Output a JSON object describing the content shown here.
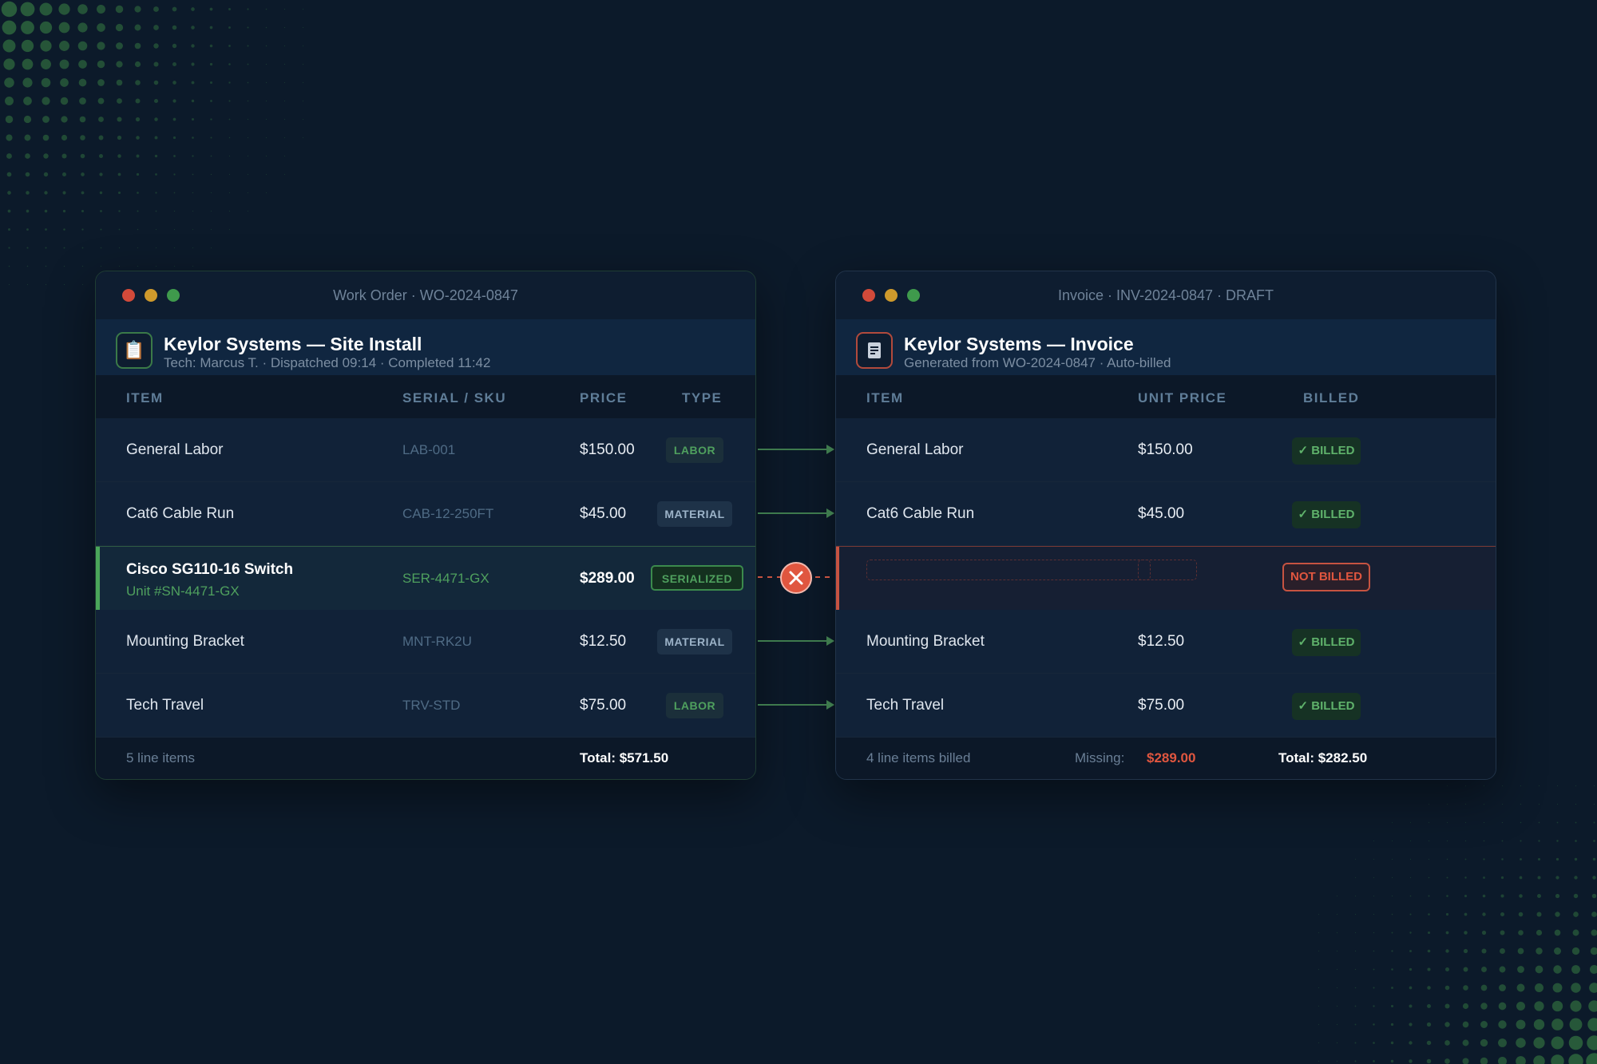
{
  "colors": {
    "background": "#0c1a2a",
    "accent_green": "#4fa05e",
    "error_red": "#e0563f"
  },
  "work_order": {
    "window_title": "Work Order · WO-2024-0847",
    "header_icon": "clipboard-icon",
    "title": "Keylor Systems — Site Install",
    "subtitle": "Tech: Marcus T. · Dispatched 09:14 · Completed 11:42",
    "columns": {
      "item": "ITEM",
      "serial": "SERIAL / SKU",
      "price": "PRICE",
      "type": "TYPE"
    },
    "rows": [
      {
        "item": "General Labor",
        "sku": "LAB-001",
        "price": "$150.00",
        "type": "LABOR"
      },
      {
        "item": "Cat6 Cable Run",
        "sku": "CAB-12-250FT",
        "price": "$45.00",
        "type": "MATERIAL"
      },
      {
        "item": "Cisco SG110-16 Switch",
        "unit": "Unit #SN-4471-GX",
        "sku": "SER-4471-GX",
        "price": "$289.00",
        "type": "SERIALIZED"
      },
      {
        "item": "Mounting Bracket",
        "sku": "MNT-RK2U",
        "price": "$12.50",
        "type": "MATERIAL"
      },
      {
        "item": "Tech Travel",
        "sku": "TRV-STD",
        "price": "$75.00",
        "type": "LABOR"
      }
    ],
    "footer": {
      "count": "5 line items",
      "total": "Total: $571.50"
    }
  },
  "invoice": {
    "window_title": "Invoice · INV-2024-0847 · DRAFT",
    "header_icon": "receipt-icon",
    "title": "Keylor Systems — Invoice",
    "subtitle": "Generated from WO-2024-0847 · Auto-billed",
    "columns": {
      "item": "ITEM",
      "unit_price": "UNIT PRICE",
      "billed": "BILLED"
    },
    "rows": [
      {
        "item": "General Labor",
        "price": "$150.00",
        "status": "✓ BILLED"
      },
      {
        "item": "Cat6 Cable Run",
        "price": "$45.00",
        "status": "✓ BILLED"
      },
      {
        "item": "",
        "price": "",
        "status": "NOT BILLED"
      },
      {
        "item": "Mounting Bracket",
        "price": "$12.50",
        "status": "✓ BILLED"
      },
      {
        "item": "Tech Travel",
        "price": "$75.00",
        "status": "✓ BILLED"
      }
    ],
    "footer": {
      "count": "4 line items billed",
      "missing_label": "Missing:",
      "missing_value": "$289.00",
      "total": "Total: $282.50"
    }
  }
}
